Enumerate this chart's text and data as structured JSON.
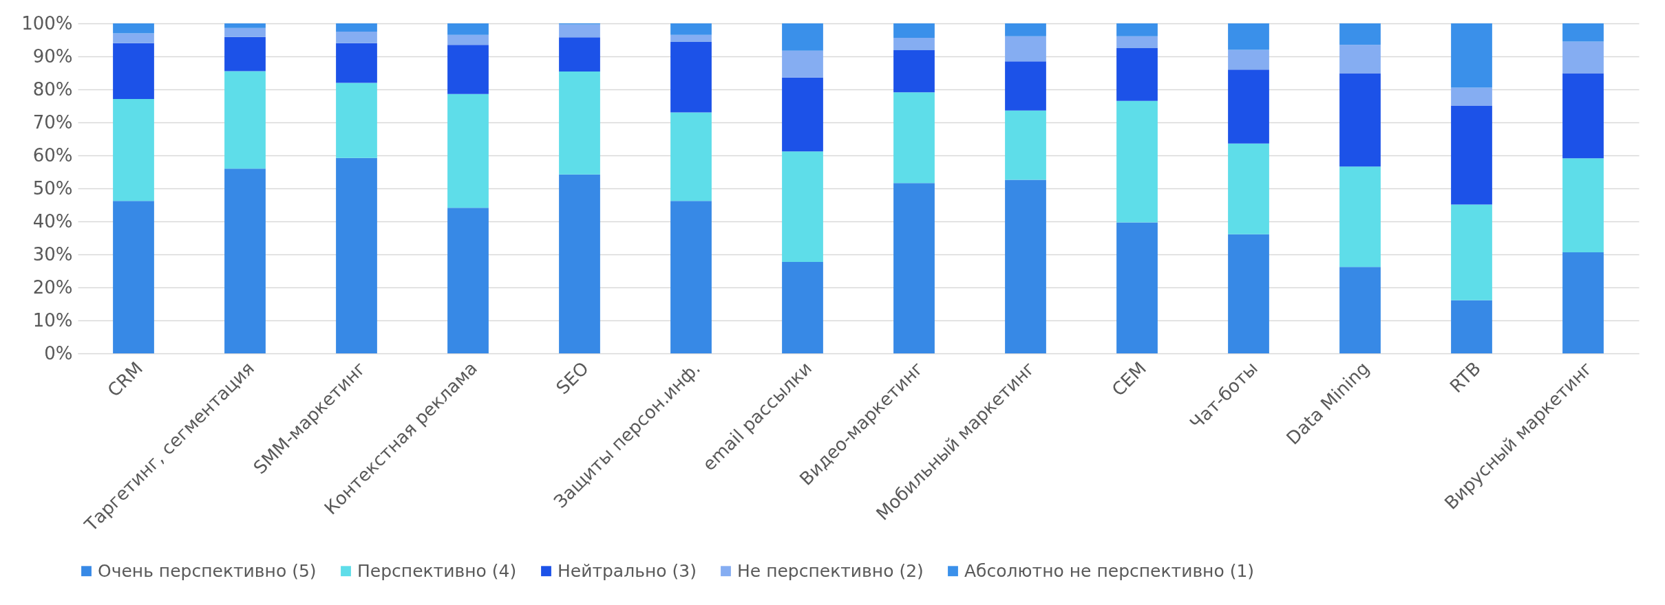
{
  "chart_data": {
    "type": "bar",
    "stacked": true,
    "categories": [
      "CRM",
      "Таргетинг, сегментация",
      "SMM-маркетинг",
      "Контекстная реклама",
      "SEO",
      "Защиты персон.инф.",
      "email рассылки",
      "Видео-маркетинг",
      "Мобильный маркетинг",
      "CEM",
      "Чат-боты",
      "Data Mining",
      "RTB",
      "Вирусный маркетинг"
    ],
    "series": [
      {
        "name": "Очень перспективно (5)",
        "color": "#3789e6",
        "values": [
          46.2,
          56.0,
          59.2,
          44.1,
          54.2,
          46.2,
          27.7,
          51.6,
          52.6,
          39.7,
          36.1,
          26.2,
          16.1,
          30.6
        ]
      },
      {
        "name": "Перспективно (4)",
        "color": "#5edde9",
        "values": [
          30.9,
          29.5,
          22.8,
          34.5,
          31.2,
          26.8,
          33.5,
          27.5,
          21.0,
          36.8,
          27.5,
          30.4,
          29.0,
          28.5
        ]
      },
      {
        "name": "Нейтрально (3)",
        "color": "#1c52e8",
        "values": [
          16.9,
          10.4,
          12.0,
          14.9,
          10.4,
          21.4,
          22.4,
          12.8,
          14.9,
          16.0,
          22.4,
          28.3,
          30.0,
          25.8
        ]
      },
      {
        "name": "Не перспективно (2)",
        "color": "#85adf2",
        "values": [
          3.0,
          2.7,
          3.5,
          3.0,
          3.9,
          2.1,
          8.1,
          3.7,
          7.6,
          3.6,
          6.0,
          8.6,
          5.4,
          9.6
        ]
      },
      {
        "name": "Абсолютно не перспективно (1)",
        "color": "#3a90ea",
        "values": [
          3.0,
          1.4,
          2.5,
          3.5,
          0.3,
          3.5,
          8.3,
          4.4,
          3.9,
          3.9,
          8.0,
          6.5,
          19.5,
          5.5
        ]
      }
    ],
    "ylim": [
      0,
      100
    ],
    "yticks": [
      {
        "value": 0,
        "label": "0%"
      },
      {
        "value": 10,
        "label": "10%"
      },
      {
        "value": 20,
        "label": "20%"
      },
      {
        "value": 30,
        "label": "30%"
      },
      {
        "value": 40,
        "label": "40%"
      },
      {
        "value": 50,
        "label": "50%"
      },
      {
        "value": 60,
        "label": "60%"
      },
      {
        "value": 70,
        "label": "70%"
      },
      {
        "value": 80,
        "label": "80%"
      },
      {
        "value": 90,
        "label": "90%"
      },
      {
        "value": 100,
        "label": "100%"
      }
    ],
    "grid": "y",
    "legend": "bottom"
  }
}
